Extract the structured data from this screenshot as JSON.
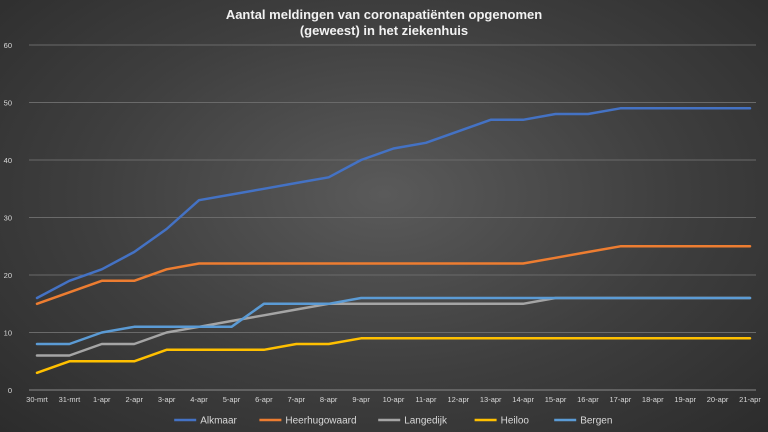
{
  "chart_data": {
    "type": "line",
    "title_lines": [
      "Aantal meldingen van coronapatiënten opgenomen",
      "(geweest) in het ziekenhuis"
    ],
    "categories": [
      "30-mrt",
      "31-mrt",
      "1-apr",
      "2-apr",
      "3-apr",
      "4-apr",
      "5-apr",
      "6-apr",
      "7-apr",
      "8-apr",
      "9-apr",
      "10-apr",
      "11-apr",
      "12-apr",
      "13-apr",
      "14-apr",
      "15-apr",
      "16-apr",
      "17-apr",
      "18-apr",
      "19-apr",
      "20-apr",
      "21-apr"
    ],
    "y_ticks": [
      0,
      10,
      20,
      30,
      40,
      50,
      60
    ],
    "ylim": [
      0,
      60
    ],
    "grid": true,
    "legend_position": "bottom",
    "series": [
      {
        "name": "Alkmaar",
        "color": "#4472c4",
        "values": [
          16,
          19,
          21,
          24,
          28,
          33,
          34,
          35,
          36,
          37,
          40,
          42,
          43,
          45,
          47,
          47,
          48,
          48,
          49,
          49,
          49,
          49,
          49
        ]
      },
      {
        "name": "Heerhugowaard",
        "color": "#ed7d31",
        "values": [
          15,
          17,
          19,
          19,
          21,
          22,
          22,
          22,
          22,
          22,
          22,
          22,
          22,
          22,
          22,
          22,
          23,
          24,
          25,
          25,
          25,
          25,
          25
        ]
      },
      {
        "name": "Langedijk",
        "color": "#a5a5a5",
        "values": [
          6,
          6,
          8,
          8,
          10,
          11,
          12,
          13,
          14,
          15,
          15,
          15,
          15,
          15,
          15,
          15,
          16,
          16,
          16,
          16,
          16,
          16,
          16
        ]
      },
      {
        "name": "Heiloo",
        "color": "#ffc000",
        "values": [
          3,
          5,
          5,
          5,
          7,
          7,
          7,
          7,
          8,
          8,
          9,
          9,
          9,
          9,
          9,
          9,
          9,
          9,
          9,
          9,
          9,
          9,
          9
        ]
      },
      {
        "name": "Bergen",
        "color": "#5b9bd5",
        "values": [
          8,
          8,
          10,
          11,
          11,
          11,
          11,
          15,
          15,
          15,
          16,
          16,
          16,
          16,
          16,
          16,
          16,
          16,
          16,
          16,
          16,
          16,
          16
        ]
      }
    ]
  }
}
